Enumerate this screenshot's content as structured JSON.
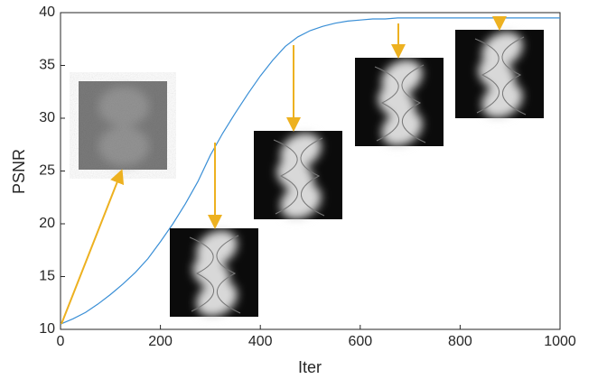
{
  "chart_data": {
    "type": "line",
    "x_label": "Iter",
    "y_label": "PSNR",
    "x": [
      0,
      25,
      50,
      75,
      100,
      125,
      150,
      175,
      200,
      225,
      250,
      275,
      300,
      325,
      350,
      375,
      400,
      425,
      450,
      475,
      500,
      525,
      550,
      575,
      600,
      625,
      650,
      675,
      700,
      750,
      800,
      850,
      900,
      950,
      1000
    ],
    "series": [
      {
        "name": "PSNR",
        "color": "#3a8fd6",
        "values": [
          10.5,
          11.0,
          11.6,
          12.4,
          13.3,
          14.3,
          15.4,
          16.7,
          18.3,
          20.0,
          21.9,
          24.0,
          26.5,
          28.6,
          30.5,
          32.3,
          34.0,
          35.5,
          36.8,
          37.7,
          38.3,
          38.7,
          39.0,
          39.2,
          39.3,
          39.4,
          39.4,
          39.5,
          39.5,
          39.5,
          39.5,
          39.5,
          39.5,
          39.5,
          39.5
        ]
      }
    ],
    "xlim": [
      0,
      1000
    ],
    "xticks": [
      0,
      200,
      400,
      600,
      800,
      1000
    ],
    "ylim": [
      10,
      40
    ],
    "yticks": [
      10,
      15,
      20,
      25,
      30,
      35,
      40
    ],
    "grid": false
  }
}
